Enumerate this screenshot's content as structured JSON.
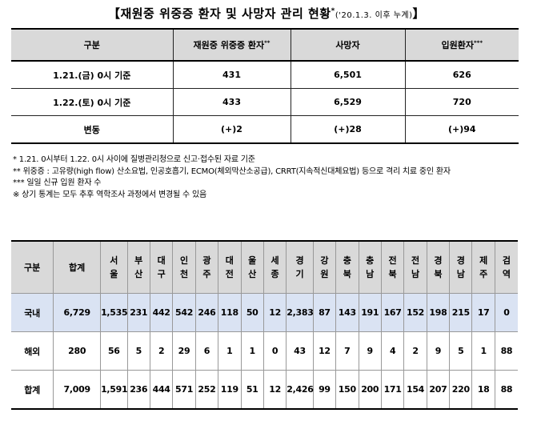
{
  "title": {
    "main": "【재원중  위중증 환자 및 사망자 관리 현황",
    "mark": "*",
    "sub": "('20.1.3. 이후 누계)",
    "close": "】"
  },
  "summary_table": {
    "headers": [
      "구분",
      "재원중 위중증 환자",
      "사망자",
      "입원환자"
    ],
    "header_marks": [
      "",
      "**",
      "",
      "***"
    ],
    "rows": [
      {
        "label": "1.21.(금) 0시 기준",
        "critical": "431",
        "deaths": "6,501",
        "admitted": "626"
      },
      {
        "label": "1.22.(토) 0시 기준",
        "critical": "433",
        "deaths": "6,529",
        "admitted": "720"
      },
      {
        "label": "변동",
        "critical": "(+)2",
        "deaths": "(+)28",
        "admitted": "(+)94"
      }
    ]
  },
  "notes": [
    "*  1.21. 0시부터 1.22. 0시 사이에 질병관리청으로 신고·접수된 자료 기준",
    "**  위중증 : 고유량(high flow) 산소요법, 인공호흡기, ECMO(체외막산소공급), CRRT(지속적신대체요법) 등으로 격리 치료 중인 환자",
    "***  일일 신규 입원 환자 수",
    "※ 상기 통계는 모두 추후 역학조사 과정에서 변경될 수 있음"
  ],
  "region_table": {
    "headers": [
      "구분",
      "합계",
      "서울",
      "부산",
      "대구",
      "인천",
      "광주",
      "대전",
      "울산",
      "세종",
      "경기",
      "강원",
      "충북",
      "충남",
      "전북",
      "전남",
      "경북",
      "경남",
      "제주",
      "검역"
    ],
    "rows": [
      {
        "label": "국내",
        "values": [
          "6,729",
          "1,535",
          "231",
          "442",
          "542",
          "246",
          "118",
          "50",
          "12",
          "2,383",
          "87",
          "143",
          "191",
          "167",
          "152",
          "198",
          "215",
          "17",
          "0"
        ]
      },
      {
        "label": "해외",
        "values": [
          "280",
          "56",
          "5",
          "2",
          "29",
          "6",
          "1",
          "1",
          "0",
          "43",
          "12",
          "7",
          "9",
          "4",
          "2",
          "9",
          "5",
          "1",
          "88"
        ]
      },
      {
        "label": "합계",
        "values": [
          "7,009",
          "1,591",
          "236",
          "444",
          "571",
          "252",
          "119",
          "51",
          "12",
          "2,426",
          "99",
          "150",
          "200",
          "171",
          "154",
          "207",
          "220",
          "18",
          "88"
        ]
      }
    ]
  },
  "colors": {
    "header_bg": "#d9d9d9",
    "domestic_row_bg": "#dae3f3"
  }
}
